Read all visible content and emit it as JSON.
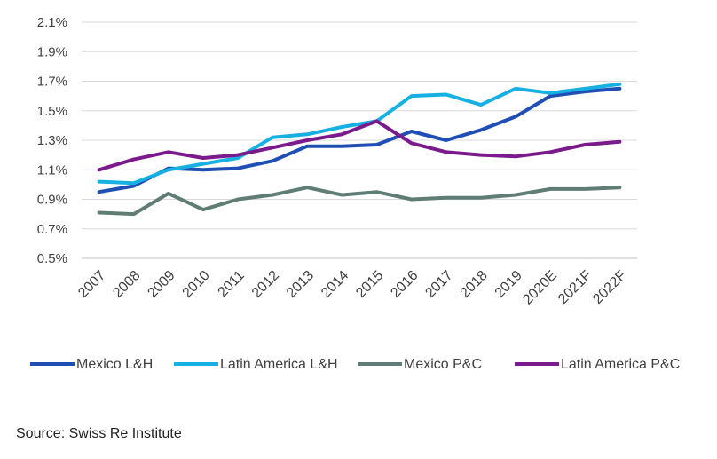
{
  "chart_data": {
    "type": "line",
    "categories": [
      "2007",
      "2008",
      "2009",
      "2010",
      "2011",
      "2012",
      "2013",
      "2014",
      "2015",
      "2016",
      "2017",
      "2018",
      "2019",
      "2020E",
      "2021F",
      "2022F"
    ],
    "y_ticks": [
      "0.5%",
      "0.7%",
      "0.9%",
      "1.1%",
      "1.3%",
      "1.5%",
      "1.7%",
      "1.9%",
      "2.1%"
    ],
    "ylim": [
      0.5,
      2.1
    ],
    "grid": "horizontal",
    "legend_position": "bottom",
    "series": [
      {
        "name": "Mexico L&H",
        "color": "#1f4fb4",
        "values": [
          0.95,
          0.99,
          1.11,
          1.1,
          1.11,
          1.16,
          1.26,
          1.26,
          1.27,
          1.36,
          1.3,
          1.37,
          1.46,
          1.6,
          1.63,
          1.65
        ]
      },
      {
        "name": "Latin America L&H",
        "color": "#17b0e3",
        "values": [
          1.02,
          1.01,
          1.1,
          1.14,
          1.18,
          1.32,
          1.34,
          1.39,
          1.43,
          1.6,
          1.61,
          1.54,
          1.65,
          1.62,
          1.65,
          1.68
        ]
      },
      {
        "name": "Mexico P&C",
        "color": "#5f7d74",
        "values": [
          0.81,
          0.8,
          0.94,
          0.83,
          0.9,
          0.93,
          0.98,
          0.93,
          0.95,
          0.9,
          0.91,
          0.91,
          0.93,
          0.97,
          0.97,
          0.98
        ]
      },
      {
        "name": "Latin America P&C",
        "color": "#7b1a8c",
        "values": [
          1.1,
          1.17,
          1.22,
          1.18,
          1.2,
          1.25,
          1.3,
          1.34,
          1.43,
          1.28,
          1.22,
          1.2,
          1.19,
          1.22,
          1.27,
          1.29
        ]
      }
    ]
  },
  "source": "Source: Swiss Re Institute"
}
